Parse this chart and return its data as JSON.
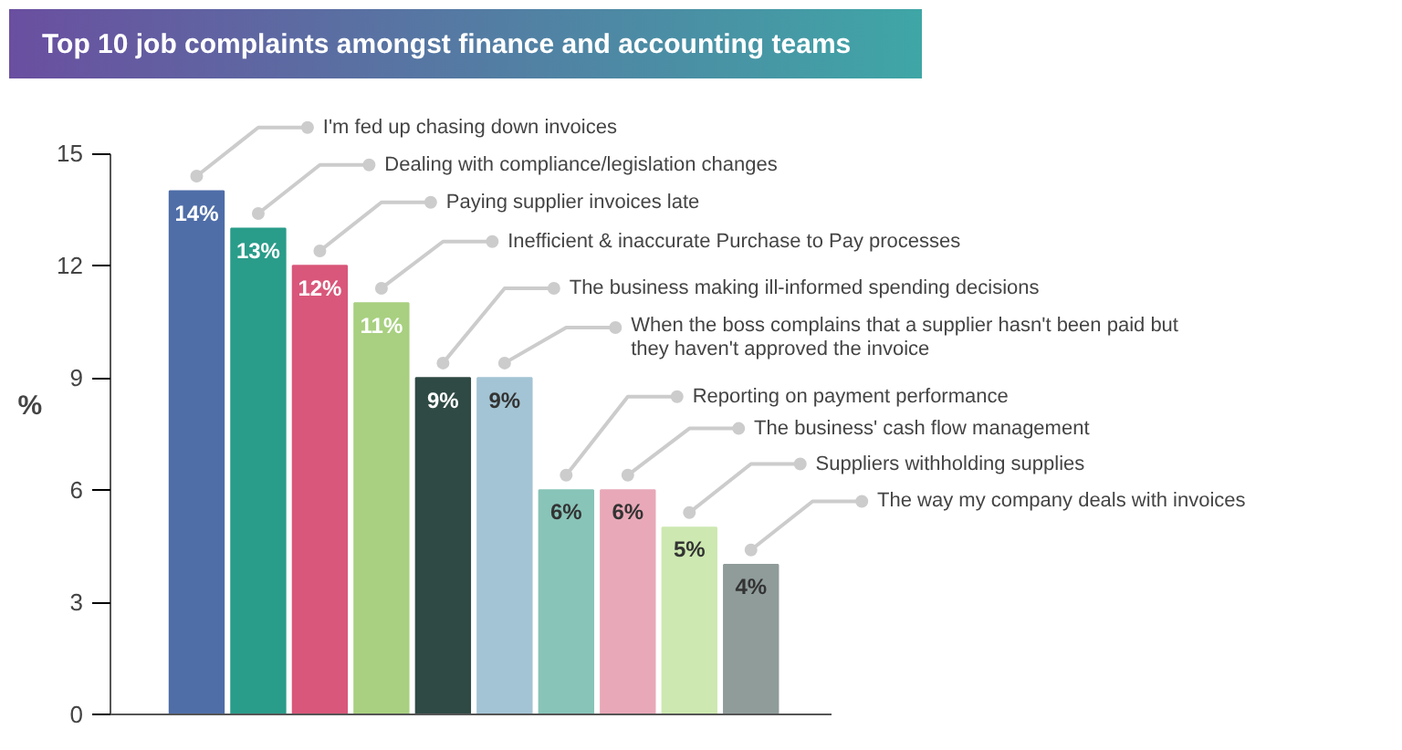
{
  "chart_data": {
    "type": "bar",
    "title": "Top 10 job complaints amongst finance and accounting teams",
    "ylabel": "%",
    "categories": [
      null,
      null,
      null,
      null,
      null,
      null,
      null,
      null,
      null,
      null
    ],
    "values": [
      14,
      13,
      12,
      11,
      9,
      9,
      6,
      6,
      5,
      4
    ],
    "colors": [
      "#4f6ea8",
      "#2a9c8a",
      "#d9577a",
      "#a8d080",
      "#2f4a44",
      "#a3c4d4",
      "#88c4b8",
      "#e8a8b8",
      "#cde8b0",
      "#8f9c9a"
    ],
    "value_labels": [
      "14%",
      "13%",
      "12%",
      "11%",
      "9%",
      "9%",
      "6%",
      "6%",
      "5%",
      "4%"
    ],
    "annotations": [
      "I'm fed up chasing down invoices",
      "Dealing with compliance/legislation changes",
      "Paying supplier invoices late",
      "Inefficient & inaccurate Purchase to Pay processes",
      "The business making ill-informed spending decisions",
      "When the boss complains that a supplier hasn't been paid but they haven't approved the invoice",
      "Reporting on payment performance",
      "The business' cash flow management",
      "Suppliers withholding supplies",
      "The way my company deals with invoices"
    ],
    "ylim": [
      0,
      15
    ],
    "yticks": [
      0,
      3,
      6,
      9,
      12,
      15
    ],
    "grid": false,
    "tick_labels": "y"
  }
}
